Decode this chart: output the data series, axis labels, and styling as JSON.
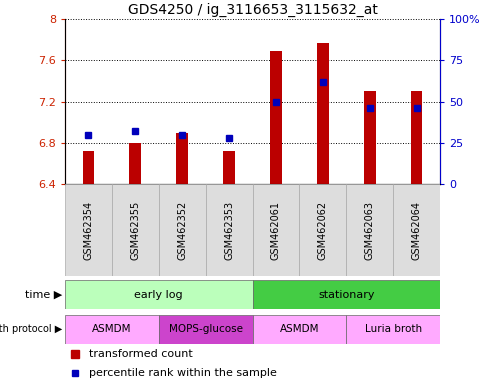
{
  "title": "GDS4250 / ig_3116653_3115632_at",
  "samples": [
    "GSM462354",
    "GSM462355",
    "GSM462352",
    "GSM462353",
    "GSM462061",
    "GSM462062",
    "GSM462063",
    "GSM462064"
  ],
  "transformed_count": [
    6.72,
    6.8,
    6.9,
    6.72,
    7.69,
    7.77,
    7.3,
    7.3
  ],
  "percentile_rank": [
    30,
    32,
    30,
    28,
    50,
    62,
    46,
    46
  ],
  "ylim_left": [
    6.4,
    8.0
  ],
  "ylim_right": [
    0,
    100
  ],
  "yticks_left": [
    6.4,
    6.8,
    7.2,
    7.6,
    8.0
  ],
  "yticks_right": [
    0,
    25,
    50,
    75,
    100
  ],
  "ytick_labels_left": [
    "6.4",
    "6.8",
    "7.2",
    "7.6",
    "8"
  ],
  "ytick_labels_right": [
    "0",
    "25",
    "50",
    "75",
    "100%"
  ],
  "bar_color": "#bb0000",
  "dot_color": "#0000bb",
  "bar_bottom": 6.4,
  "bar_width": 0.25,
  "time_groups": [
    {
      "label": "early log",
      "start": 0,
      "end": 4,
      "color": "#bbffbb"
    },
    {
      "label": "stationary",
      "start": 4,
      "end": 8,
      "color": "#44cc44"
    }
  ],
  "protocol_groups": [
    {
      "label": "ASMDM",
      "start": 0,
      "end": 2,
      "color": "#ffaaff"
    },
    {
      "label": "MOPS-glucose",
      "start": 2,
      "end": 4,
      "color": "#cc44cc"
    },
    {
      "label": "ASMDM",
      "start": 4,
      "end": 6,
      "color": "#ffaaff"
    },
    {
      "label": "Luria broth",
      "start": 6,
      "end": 8,
      "color": "#ffaaff"
    }
  ],
  "legend_bar_label": "transformed count",
  "legend_dot_label": "percentile rank within the sample",
  "left_color": "#cc2200",
  "right_color": "#0000cc",
  "background_color": "#ffffff"
}
